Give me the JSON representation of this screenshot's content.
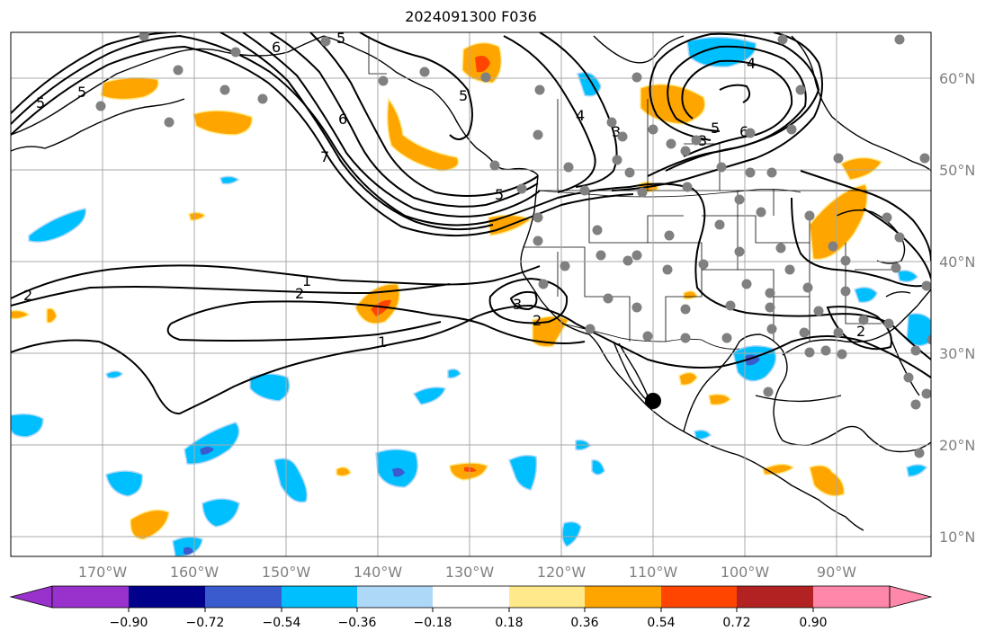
{
  "title": "2024091300 F036",
  "lon_labels": [
    "170°W",
    "160°W",
    "150°W",
    "140°W",
    "130°W",
    "120°W",
    "110°W",
    "100°W",
    "90°W"
  ],
  "lat_labels": [
    "60°N",
    "50°N",
    "40°N",
    "30°N",
    "20°N",
    "10°N"
  ],
  "colorbar": {
    "ticks": [
      "−0.90",
      "−0.72",
      "−0.54",
      "−0.36",
      "−0.18",
      "0.18",
      "0.36",
      "0.54",
      "0.72",
      "0.90"
    ],
    "colors": [
      "#9932cc",
      "#00008b",
      "#3a5bcd",
      "#00bfff",
      "#add8f8",
      "#ffffff",
      "#ffe98a",
      "#ffa500",
      "#ff4500",
      "#b22222",
      "#ff88aa"
    ]
  },
  "contour_labels": [
    "6",
    "5",
    "5",
    "6",
    "7",
    "5",
    "4",
    "3",
    "3",
    "5",
    "6",
    "1",
    "2",
    "2",
    "3",
    "2",
    "1",
    "2",
    "5",
    "4",
    "5"
  ],
  "colors": {
    "positive_fill": "#ffa500",
    "positive_strong": "#ff4500",
    "negative_fill": "#00bfff",
    "negative_strong": "#3a5bcd",
    "grid": "#a9a9a9",
    "station_dot": "#808080"
  }
}
